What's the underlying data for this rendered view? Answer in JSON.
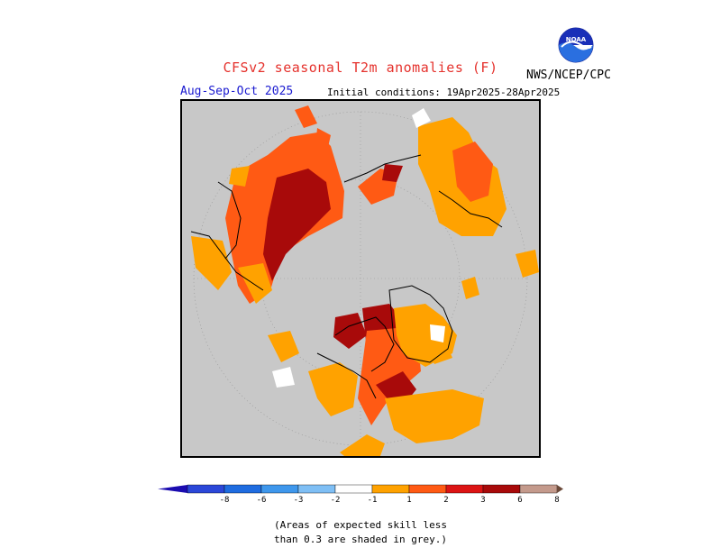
{
  "header": {
    "title": "CFSv2 seasonal T2m anomalies (F)",
    "period": "Aug-Sep-Oct 2025",
    "initial_conditions": "Initial conditions: 19Apr2025-28Apr2025",
    "agency": "NWS/NCEP/CPC",
    "logo_text": "NOAA"
  },
  "map": {
    "projection": "polar-stereographic-north",
    "background_color": "#c8c8c8",
    "land_outline_color": "#000000"
  },
  "colorbar": {
    "labels": [
      "-8",
      "-6",
      "-3",
      "-2",
      "-1",
      "1",
      "2",
      "3",
      "6",
      "8"
    ],
    "colors": [
      "#1b0cb0",
      "#2b47d8",
      "#1f6ce0",
      "#3e97ec",
      "#7fbff5",
      "#ffffff",
      "#ffa200",
      "#ff5a14",
      "#dc1414",
      "#a80a0a",
      "#c49a8c",
      "#6b4a3a"
    ]
  },
  "footnote": {
    "line1": "(Areas of expected skill less",
    "line2": "than 0.3 are shaded in grey.)"
  }
}
